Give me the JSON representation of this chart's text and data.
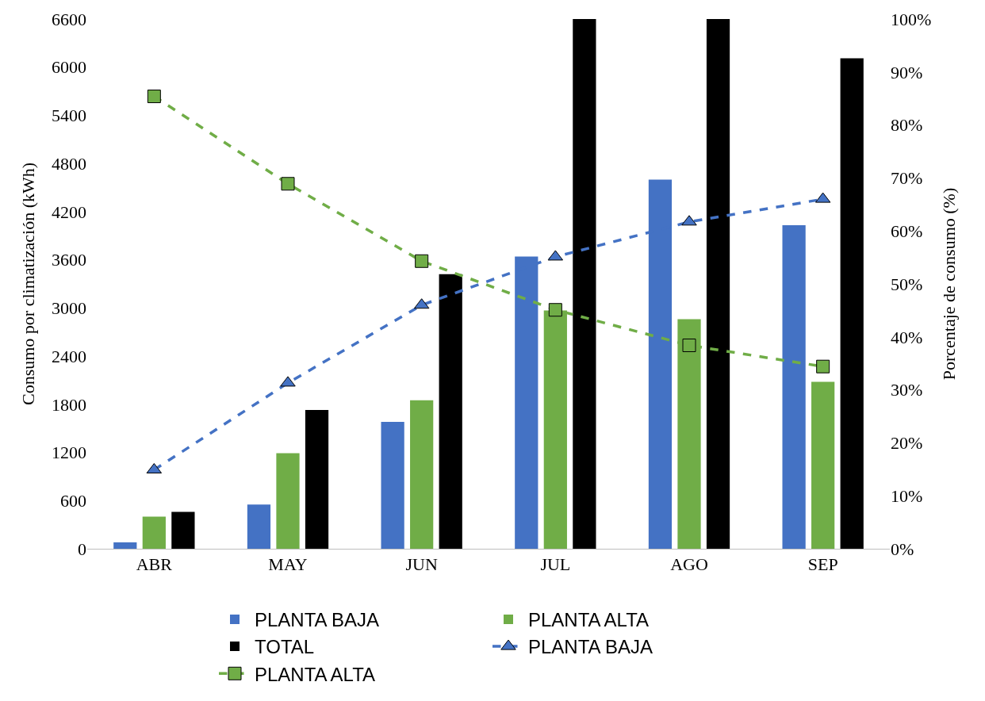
{
  "chart_data": {
    "type": "bar",
    "ylabel": "Consumo por climatización (kWh)",
    "y2label": "Porcentaje de consumo (%)",
    "categories": [
      "ABR",
      "MAY",
      "JUN",
      "JUL",
      "AGO",
      "SEP"
    ],
    "series": [
      {
        "name": "PLANTA BAJA",
        "color": "#4472c4",
        "values": [
          80,
          550,
          1580,
          3640,
          4600,
          4030
        ]
      },
      {
        "name": "PLANTA ALTA",
        "color": "#70ad47",
        "values": [
          400,
          1190,
          1850,
          2970,
          2860,
          2080
        ]
      },
      {
        "name": "TOTAL",
        "color": "#000000",
        "values": [
          460,
          1730,
          3420,
          6600,
          6600,
          6110
        ]
      },
      {
        "name": "PLANTA BAJA",
        "type": "line",
        "axis": "y2",
        "color": "#4472c4",
        "marker": "triangle",
        "line_style": "dashed",
        "values": [
          14.9,
          31.3,
          46.0,
          55.1,
          61.7,
          66.0
        ]
      },
      {
        "name": "PLANTA ALTA",
        "type": "line",
        "axis": "y2",
        "color": "#70ad47",
        "marker": "square",
        "line_style": "dashed",
        "values": [
          85.4,
          68.9,
          54.3,
          45.1,
          38.4,
          34.4
        ]
      }
    ],
    "ylim": [
      0,
      6600
    ],
    "yticks": [
      0,
      600,
      1200,
      1800,
      2400,
      3000,
      3600,
      4200,
      4800,
      5400,
      6000,
      6600
    ],
    "y2lim": [
      0,
      100
    ],
    "y2ticks": [
      {
        "value": 0,
        "label": "0%"
      },
      {
        "value": 10,
        "label": "10%"
      },
      {
        "value": 20,
        "label": "20%"
      },
      {
        "value": 30,
        "label": "30%"
      },
      {
        "value": 40,
        "label": "40%"
      },
      {
        "value": 50,
        "label": "50%"
      },
      {
        "value": 60,
        "label": "60%"
      },
      {
        "value": 70,
        "label": "70%"
      },
      {
        "value": 80,
        "label": "80%"
      },
      {
        "value": 90,
        "label": "90%"
      },
      {
        "value": 100,
        "label": "100%"
      }
    ],
    "grid": false,
    "legend": "bottom"
  }
}
